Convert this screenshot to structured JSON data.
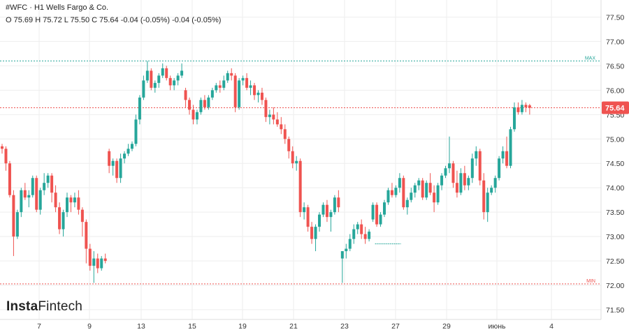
{
  "header": {
    "title": "#WFC · H1 Wells Fargo & Co.",
    "ohlc": "O 75.69 H 75.72 L 75.50 C 75.64 -0.04 (-0.05%) -0.04 (-0.05%)"
  },
  "logo": {
    "bold": "Insta",
    "regular": "Fintech"
  },
  "colors": {
    "up": "#26a69a",
    "down": "#ef5350",
    "grid": "#eeeeee",
    "max_line": "#26a69a",
    "min_line": "#ef5350",
    "last_price": "#ef5350"
  },
  "chart_data": {
    "type": "candlestick",
    "symbol": "#WFC",
    "timeframe": "H1",
    "y_ticks": [
      "77.50",
      "77.00",
      "76.50",
      "76.00",
      "75.50",
      "75.00",
      "74.50",
      "74.00",
      "73.50",
      "73.00",
      "72.50",
      "72.00",
      "71.50"
    ],
    "x_ticks": [
      "7",
      "9",
      "13",
      "15",
      "19",
      "21",
      "23",
      "27",
      "29",
      "июнь",
      "4"
    ],
    "ylim": [
      71.3,
      77.85
    ],
    "last_price": 75.64,
    "last_price_label": "75.64",
    "max": 76.6,
    "max_label": "MAX",
    "min": 72.03,
    "min_label": "MIN",
    "forecast_level": 72.85,
    "candles": [
      [
        74.85,
        74.9,
        74.7,
        74.8
      ],
      [
        74.8,
        74.85,
        74.35,
        74.5
      ],
      [
        74.5,
        74.55,
        73.8,
        73.85
      ],
      [
        73.85,
        73.95,
        72.6,
        73.0
      ],
      [
        73.0,
        73.55,
        72.95,
        73.5
      ],
      [
        73.5,
        74.0,
        73.4,
        73.95
      ],
      [
        73.95,
        74.1,
        73.75,
        73.8
      ],
      [
        73.8,
        73.95,
        73.6,
        73.85
      ],
      [
        73.85,
        74.25,
        73.8,
        74.2
      ],
      [
        74.2,
        74.25,
        73.5,
        73.55
      ],
      [
        73.55,
        74.0,
        73.45,
        73.95
      ],
      [
        73.95,
        74.3,
        73.85,
        74.1
      ],
      [
        74.1,
        74.3,
        74.0,
        74.25
      ],
      [
        74.25,
        74.3,
        73.7,
        73.9
      ],
      [
        73.9,
        74.05,
        73.5,
        73.6
      ],
      [
        73.6,
        73.7,
        73.05,
        73.15
      ],
      [
        73.15,
        73.55,
        73.0,
        73.5
      ],
      [
        73.5,
        73.9,
        73.4,
        73.8
      ],
      [
        73.8,
        73.85,
        73.5,
        73.7
      ],
      [
        73.7,
        73.9,
        73.6,
        73.8
      ],
      [
        73.8,
        73.95,
        73.45,
        73.55
      ],
      [
        73.55,
        73.6,
        73.0,
        73.3
      ],
      [
        73.3,
        73.35,
        72.45,
        72.75
      ],
      [
        72.75,
        72.85,
        72.3,
        72.4
      ],
      [
        72.4,
        72.7,
        72.05,
        72.55
      ],
      [
        72.55,
        72.65,
        72.25,
        72.35
      ],
      [
        72.35,
        72.6,
        72.3,
        72.55
      ],
      [
        72.55,
        72.65,
        72.45,
        72.5
      ],
      [
        74.75,
        74.8,
        74.3,
        74.45
      ],
      [
        74.45,
        74.6,
        74.25,
        74.55
      ],
      [
        74.55,
        74.6,
        74.1,
        74.2
      ],
      [
        74.2,
        74.7,
        74.1,
        74.6
      ],
      [
        74.6,
        74.75,
        74.5,
        74.7
      ],
      [
        74.7,
        74.9,
        74.65,
        74.8
      ],
      [
        74.8,
        74.95,
        74.75,
        74.9
      ],
      [
        74.9,
        75.5,
        74.85,
        75.4
      ],
      [
        75.4,
        75.9,
        75.3,
        75.85
      ],
      [
        75.85,
        76.3,
        75.8,
        76.2
      ],
      [
        76.2,
        76.6,
        76.15,
        76.4
      ],
      [
        76.4,
        76.45,
        76.0,
        76.05
      ],
      [
        76.05,
        76.2,
        75.95,
        76.15
      ],
      [
        76.15,
        76.35,
        76.05,
        76.3
      ],
      [
        76.3,
        76.55,
        76.25,
        76.45
      ],
      [
        76.45,
        76.5,
        76.2,
        76.25
      ],
      [
        76.25,
        76.3,
        76.0,
        76.1
      ],
      [
        76.1,
        76.25,
        76.0,
        76.2
      ],
      [
        76.2,
        76.35,
        76.1,
        76.3
      ],
      [
        76.3,
        76.55,
        76.25,
        76.4
      ],
      [
        76.0,
        76.05,
        75.65,
        75.8
      ],
      [
        75.8,
        75.85,
        75.5,
        75.6
      ],
      [
        75.6,
        75.7,
        75.3,
        75.4
      ],
      [
        75.4,
        75.6,
        75.3,
        75.55
      ],
      [
        75.55,
        75.85,
        75.5,
        75.8
      ],
      [
        75.8,
        75.9,
        75.6,
        75.65
      ],
      [
        75.65,
        75.9,
        75.6,
        75.85
      ],
      [
        75.85,
        76.05,
        75.8,
        76.0
      ],
      [
        76.0,
        76.15,
        75.95,
        76.1
      ],
      [
        76.1,
        76.2,
        75.95,
        76.05
      ],
      [
        76.05,
        76.3,
        76.0,
        76.2
      ],
      [
        76.2,
        76.4,
        76.15,
        76.35
      ],
      [
        76.35,
        76.45,
        76.2,
        76.3
      ],
      [
        76.3,
        76.35,
        75.55,
        75.65
      ],
      [
        75.65,
        76.25,
        75.6,
        76.2
      ],
      [
        76.2,
        76.3,
        76.1,
        76.25
      ],
      [
        76.25,
        76.35,
        76.0,
        76.05
      ],
      [
        76.05,
        76.2,
        75.9,
        76.1
      ],
      [
        76.1,
        76.15,
        75.8,
        75.9
      ],
      [
        75.9,
        76.0,
        75.75,
        75.95
      ],
      [
        75.95,
        76.05,
        75.7,
        75.8
      ],
      [
        75.8,
        75.85,
        75.35,
        75.45
      ],
      [
        75.45,
        75.6,
        75.3,
        75.5
      ],
      [
        75.5,
        75.65,
        75.3,
        75.4
      ],
      [
        75.4,
        75.55,
        75.25,
        75.3
      ],
      [
        75.3,
        75.45,
        75.1,
        75.2
      ],
      [
        75.2,
        75.3,
        74.9,
        75.0
      ],
      [
        75.0,
        75.05,
        74.6,
        74.75
      ],
      [
        74.75,
        74.85,
        74.4,
        74.5
      ],
      [
        74.5,
        74.65,
        74.35,
        74.55
      ],
      [
        74.55,
        74.6,
        73.4,
        73.5
      ],
      [
        73.5,
        73.7,
        73.35,
        73.6
      ],
      [
        73.6,
        73.65,
        73.1,
        73.2
      ],
      [
        73.2,
        73.3,
        72.85,
        72.95
      ],
      [
        72.95,
        73.25,
        72.7,
        73.2
      ],
      [
        73.2,
        73.5,
        73.1,
        73.45
      ],
      [
        73.45,
        73.7,
        73.4,
        73.65
      ],
      [
        73.65,
        73.75,
        73.3,
        73.4
      ],
      [
        73.4,
        73.55,
        73.1,
        73.5
      ],
      [
        73.5,
        73.85,
        73.45,
        73.8
      ],
      [
        73.8,
        73.95,
        73.5,
        73.6
      ],
      [
        72.55,
        72.7,
        72.05,
        72.7
      ],
      [
        72.7,
        72.85,
        72.55,
        72.75
      ],
      [
        72.75,
        73.05,
        72.7,
        72.95
      ],
      [
        72.95,
        73.25,
        72.85,
        73.15
      ],
      [
        73.15,
        73.3,
        73.05,
        73.25
      ],
      [
        73.25,
        73.35,
        72.95,
        73.05
      ],
      [
        73.05,
        73.2,
        72.85,
        72.95
      ],
      [
        72.95,
        73.15,
        72.9,
        73.1
      ],
      [
        73.35,
        73.7,
        73.3,
        73.65
      ],
      [
        73.65,
        73.7,
        73.2,
        73.25
      ],
      [
        73.25,
        73.5,
        73.2,
        73.45
      ],
      [
        73.45,
        73.75,
        73.4,
        73.7
      ],
      [
        73.7,
        74.0,
        73.65,
        73.95
      ],
      [
        73.95,
        74.1,
        73.8,
        73.85
      ],
      [
        73.85,
        74.05,
        73.8,
        74.0
      ],
      [
        74.0,
        74.3,
        73.9,
        74.2
      ],
      [
        74.2,
        74.25,
        73.55,
        73.6
      ],
      [
        73.6,
        73.8,
        73.45,
        73.75
      ],
      [
        73.75,
        74.0,
        73.7,
        73.9
      ],
      [
        73.9,
        74.1,
        73.8,
        74.05
      ],
      [
        74.05,
        74.2,
        73.95,
        74.15
      ],
      [
        74.15,
        74.2,
        73.75,
        73.8
      ],
      [
        73.8,
        74.15,
        73.75,
        74.1
      ],
      [
        74.1,
        74.3,
        73.85,
        73.9
      ],
      [
        73.9,
        74.05,
        73.5,
        73.7
      ],
      [
        73.7,
        74.1,
        73.65,
        74.05
      ],
      [
        74.05,
        74.3,
        73.95,
        74.25
      ],
      [
        74.25,
        74.45,
        74.2,
        74.4
      ],
      [
        74.4,
        75.05,
        74.3,
        74.5
      ],
      [
        74.5,
        74.55,
        74.0,
        74.1
      ],
      [
        74.1,
        74.35,
        73.8,
        73.9
      ],
      [
        73.9,
        74.4,
        73.85,
        74.3
      ],
      [
        74.3,
        74.45,
        73.95,
        74.05
      ],
      [
        74.05,
        74.25,
        73.95,
        74.2
      ],
      [
        74.2,
        74.7,
        74.1,
        74.6
      ],
      [
        74.6,
        74.85,
        74.45,
        74.75
      ],
      [
        74.75,
        74.8,
        74.05,
        74.15
      ],
      [
        74.15,
        74.3,
        73.35,
        73.5
      ],
      [
        73.5,
        74.0,
        73.3,
        73.9
      ],
      [
        73.9,
        74.05,
        73.85,
        74.0
      ],
      [
        74.0,
        74.25,
        73.9,
        74.2
      ],
      [
        74.2,
        74.65,
        74.15,
        74.6
      ],
      [
        74.6,
        74.85,
        74.5,
        74.75
      ],
      [
        74.75,
        75.05,
        74.4,
        74.45
      ],
      [
        74.45,
        75.25,
        74.4,
        75.2
      ],
      [
        75.2,
        75.75,
        75.15,
        75.65
      ],
      [
        75.65,
        75.75,
        75.5,
        75.55
      ],
      [
        75.55,
        75.8,
        75.5,
        75.7
      ],
      [
        75.7,
        75.75,
        75.55,
        75.65
      ],
      [
        75.69,
        75.72,
        75.5,
        75.64
      ]
    ]
  }
}
